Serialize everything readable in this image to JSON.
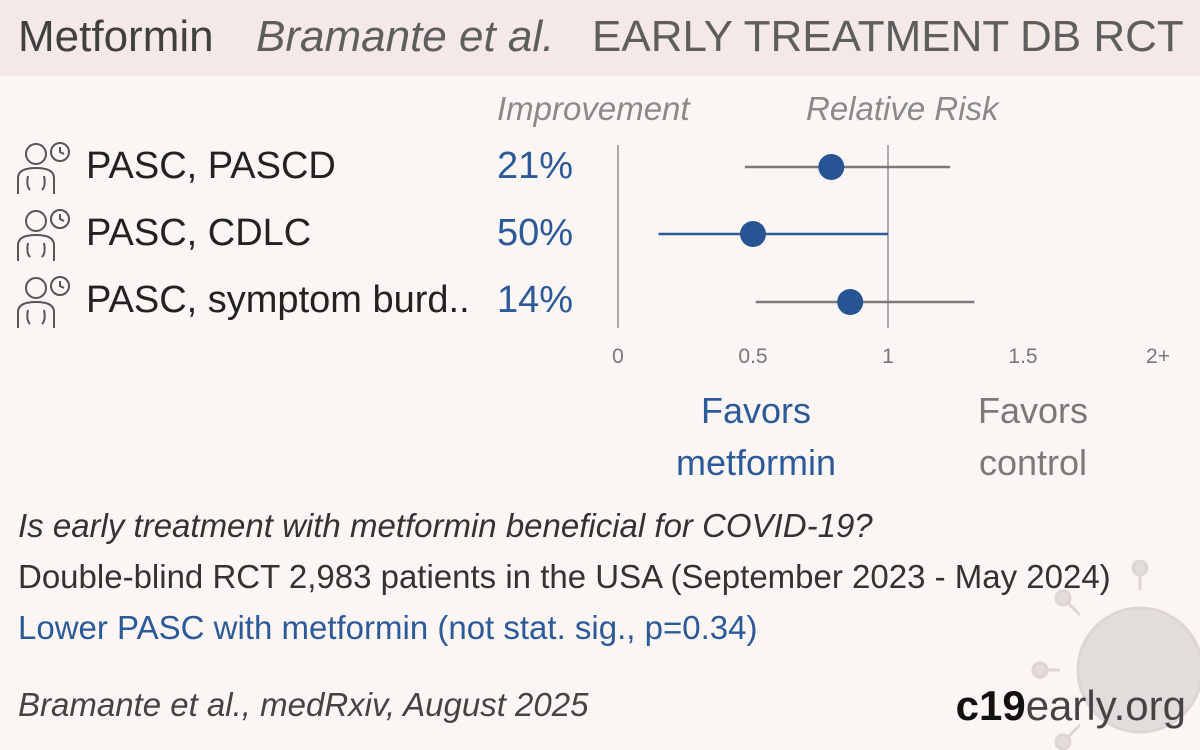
{
  "header": {
    "drug": "Metformin",
    "authors": "Bramante et al.",
    "stage": "EARLY TREATMENT",
    "design": "DB RCT"
  },
  "columns": {
    "improvement": "Improvement",
    "relative_risk": "Relative Risk"
  },
  "rows": [
    {
      "label": "PASC, PASCD",
      "improvement": "21%",
      "icon": "long-covid-person-icon"
    },
    {
      "label": "PASC, CDLC",
      "improvement": "50%",
      "icon": "long-covid-person-icon"
    },
    {
      "label": "PASC, symptom burd..",
      "improvement": "14%",
      "icon": "long-covid-person-icon"
    }
  ],
  "favors": {
    "treatment": "Favors metformin",
    "control": "Favors control"
  },
  "summary": {
    "question": "Is early treatment with metformin beneficial for COVID-19?",
    "details": "Double-blind RCT 2,983 patients in the USA (September 2023 - May 2024)",
    "result": "Lower PASC with metformin (not stat. sig., p=0.34)"
  },
  "citation": "Bramante et al., medRxiv, August 2025",
  "brand": {
    "bold": "c19",
    "rest": "early.org"
  },
  "colors": {
    "accent": "#2c5a98",
    "grey": "#7a7a7a",
    "header_bg": "#f4e9e6",
    "background": "#fbf5f3"
  },
  "chart_data": {
    "type": "forest",
    "title": "Relative Risk",
    "xlim": [
      0,
      2
    ],
    "ticks": [
      0,
      0.5,
      1,
      1.5,
      2
    ],
    "tick_labels": [
      "0",
      "0.5",
      "1",
      "1.5",
      "2+"
    ],
    "reference_line": 1,
    "series": [
      {
        "label": "PASC, PASCD",
        "rr": 0.79,
        "ci": [
          0.47,
          1.23
        ],
        "significant": false
      },
      {
        "label": "PASC, CDLC",
        "rr": 0.5,
        "ci": [
          0.15,
          1.0
        ],
        "significant": true
      },
      {
        "label": "PASC, symptom burd..",
        "rr": 0.86,
        "ci": [
          0.51,
          1.32
        ],
        "significant": false
      }
    ]
  }
}
